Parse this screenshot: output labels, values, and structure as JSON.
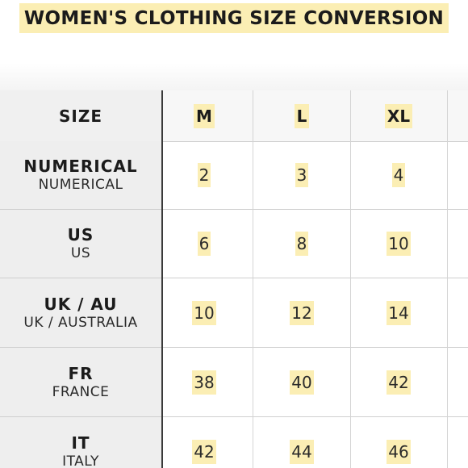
{
  "title": "WOMEN'S CLOTHING SIZE CONVERSION",
  "colors": {
    "highlight": "#fbeeb4",
    "label_bg": "#eeeeee",
    "text": "#1b1b1b"
  },
  "table": {
    "header_label": "SIZE",
    "columns": [
      "M",
      "L",
      "XL"
    ],
    "rows": [
      {
        "label": "NUMERICAL",
        "sublabel": "NUMERICAL",
        "values": [
          "2",
          "3",
          "4"
        ]
      },
      {
        "label": "US",
        "sublabel": "US",
        "values": [
          "6",
          "8",
          "10"
        ]
      },
      {
        "label": "UK / AU",
        "sublabel": "UK / AUSTRALIA",
        "values": [
          "10",
          "12",
          "14"
        ]
      },
      {
        "label": "FR",
        "sublabel": "FRANCE",
        "values": [
          "38",
          "40",
          "42"
        ]
      },
      {
        "label": "IT",
        "sublabel": "ITALY",
        "values": [
          "42",
          "44",
          "46"
        ]
      }
    ]
  }
}
